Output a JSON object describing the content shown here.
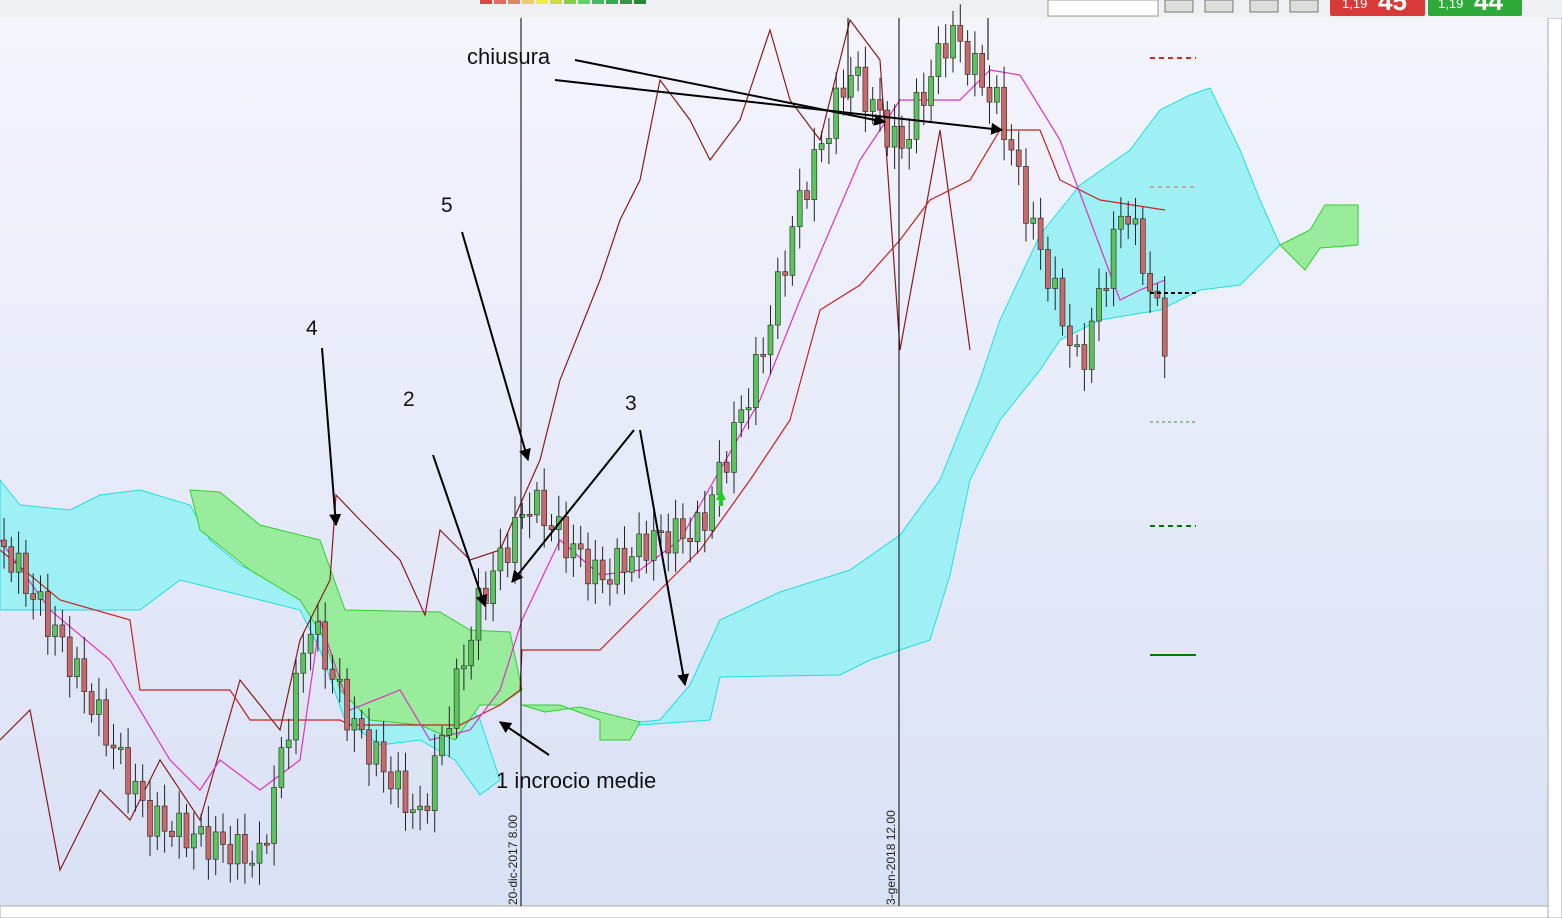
{
  "toolbar": {
    "sell_price": "1,19",
    "sell_pips": "45",
    "buy_price": "1,19",
    "buy_pips": "44"
  },
  "annotations": {
    "closing": "chiusura",
    "cross": "1 incrocio medie",
    "labels": [
      "2",
      "3",
      "4",
      "5"
    ]
  },
  "markers": [
    "20-dic-2017 8.00",
    "3-gen-2018 12.00"
  ]
}
